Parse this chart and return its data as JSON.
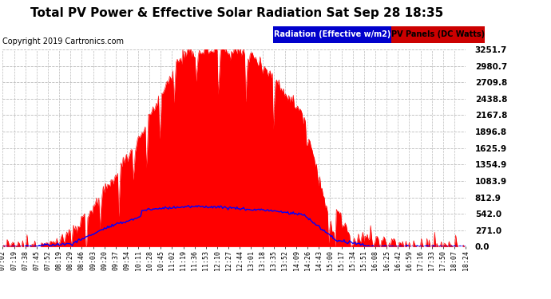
{
  "title": "Total PV Power & Effective Solar Radiation Sat Sep 28 18:35",
  "copyright": "Copyright 2019 Cartronics.com",
  "legend_radiation": "Radiation (Effective w/m2)",
  "legend_pv": "PV Panels (DC Watts)",
  "y_ticks": [
    0.0,
    271.0,
    542.0,
    812.9,
    1083.9,
    1354.9,
    1625.9,
    1896.8,
    2167.8,
    2438.8,
    2709.8,
    2980.7,
    3251.7
  ],
  "y_max": 3251.7,
  "background_color": "#ffffff",
  "plot_bg_color": "#ffffff",
  "grid_color": "#bbbbbb",
  "pv_color": "#ff0000",
  "radiation_color": "#0000ff",
  "title_fontsize": 11,
  "copyright_fontsize": 7,
  "x_labels": [
    "07:02",
    "07:19",
    "07:38",
    "07:45",
    "07:52",
    "08:19",
    "08:29",
    "08:46",
    "09:03",
    "09:20",
    "09:37",
    "09:54",
    "10:11",
    "10:28",
    "10:45",
    "11:02",
    "11:19",
    "11:36",
    "11:53",
    "12:10",
    "12:27",
    "12:44",
    "13:01",
    "13:18",
    "13:35",
    "13:52",
    "14:09",
    "14:26",
    "14:43",
    "15:00",
    "15:17",
    "15:34",
    "15:51",
    "16:08",
    "16:25",
    "16:42",
    "16:59",
    "17:16",
    "17:33",
    "17:50",
    "18:07",
    "18:24"
  ],
  "legend_blue_bg": "#0000cc",
  "legend_red_bg": "#cc0000",
  "legend_white_text": "#ffffff",
  "legend_black_text": "#000000"
}
